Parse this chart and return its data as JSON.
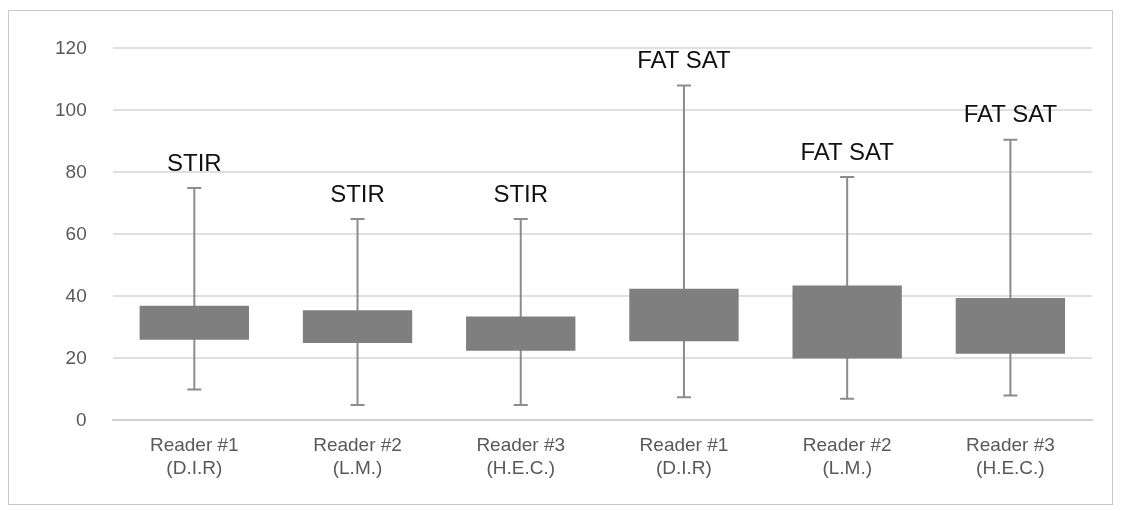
{
  "chart_data": {
    "type": "bar",
    "categories": [
      "Reader #1\n(D.I.R)",
      "Reader #2\n(L.M.)",
      "Reader #3\n(H.E.C.)",
      "Reader #1\n(D.I.R)",
      "Reader #2\n(L.M.)",
      "Reader #3\n(H.E.C.)"
    ],
    "base": [
      26,
      25,
      22.5,
      25.5,
      20,
      21.5
    ],
    "values": [
      11,
      10.5,
      11,
      17,
      23.5,
      18
    ],
    "errors": [
      [
        10,
        75
      ],
      [
        5,
        65
      ],
      [
        5,
        65
      ],
      [
        7.5,
        108
      ],
      [
        7,
        78.5
      ],
      [
        8,
        90.5
      ]
    ],
    "color": "#7f7f7f",
    "ylim": [
      0,
      120
    ],
    "yticks": [
      0,
      20,
      40,
      60,
      80,
      100,
      120
    ],
    "grid": "y",
    "annotations": [
      "STIR",
      "STIR",
      "STIR",
      "FAT SAT",
      "FAT SAT",
      "FAT SAT"
    ]
  }
}
